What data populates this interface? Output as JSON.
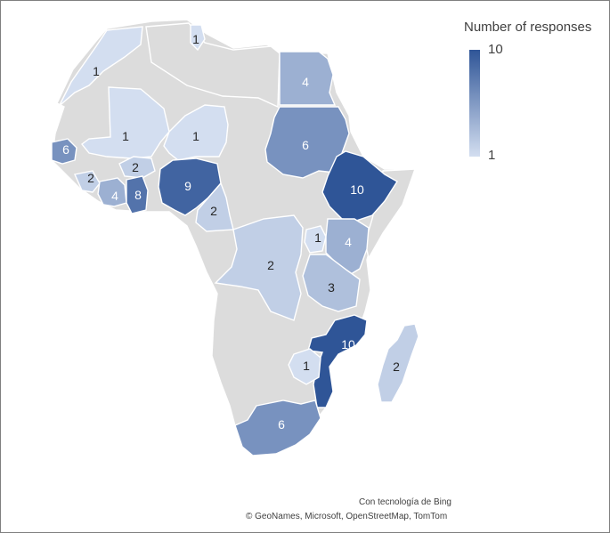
{
  "legend": {
    "title": "Number of responses",
    "max_label": "10",
    "min_label": "1",
    "color_low": "#d3def0",
    "color_high": "#2f5597",
    "min_value": 1,
    "max_value": 10
  },
  "credits": {
    "line1": "Con tecnología de Bing",
    "line2": "© GeoNames, Microsoft, OpenStreetMap, TomTom"
  },
  "countries": [
    {
      "id": "tunisia",
      "value": 1
    },
    {
      "id": "morocco",
      "value": 1
    },
    {
      "id": "mali",
      "value": 1
    },
    {
      "id": "niger",
      "value": 1
    },
    {
      "id": "egypt",
      "value": 4
    },
    {
      "id": "sudan",
      "value": 6
    },
    {
      "id": "senegal",
      "value": 6
    },
    {
      "id": "burkina-faso",
      "value": 2
    },
    {
      "id": "sierra-leone",
      "value": 2
    },
    {
      "id": "cote-divoire",
      "value": 4
    },
    {
      "id": "ghana",
      "value": 8
    },
    {
      "id": "nigeria",
      "value": 9
    },
    {
      "id": "cameroon",
      "value": 2
    },
    {
      "id": "ethiopia",
      "value": 10
    },
    {
      "id": "uganda",
      "value": 1
    },
    {
      "id": "kenya",
      "value": 4
    },
    {
      "id": "dr-congo",
      "value": 2
    },
    {
      "id": "tanzania",
      "value": 3
    },
    {
      "id": "mozambique",
      "value": 10
    },
    {
      "id": "zimbabwe",
      "value": 1
    },
    {
      "id": "madagascar",
      "value": 2
    },
    {
      "id": "south-africa",
      "value": 6
    }
  ]
}
